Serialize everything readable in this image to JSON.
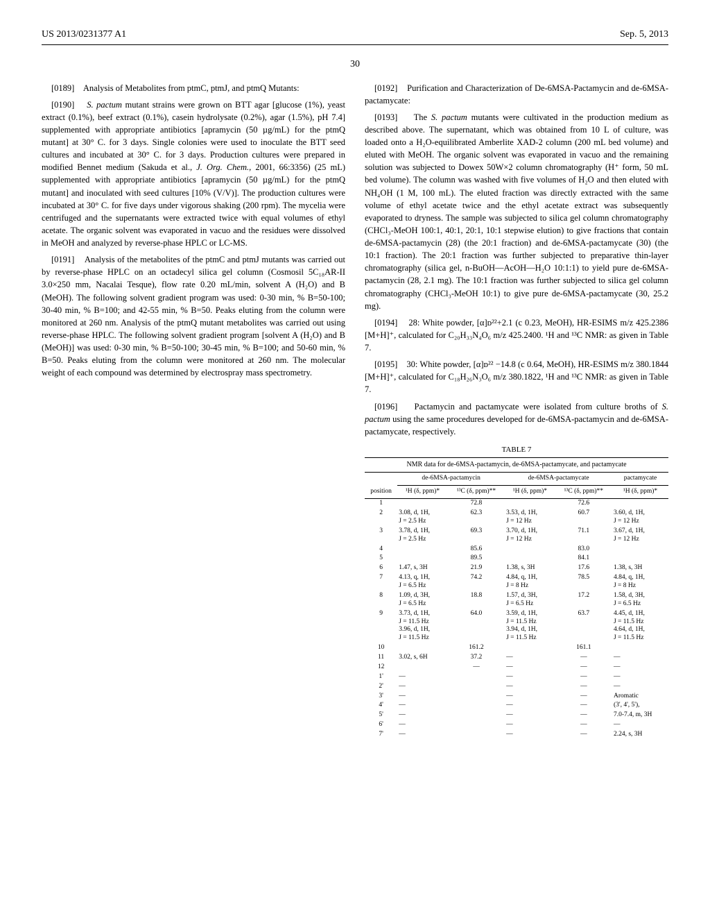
{
  "header": {
    "doc_number": "US 2013/0231377 A1",
    "date": "Sep. 5, 2013",
    "page": "30"
  },
  "left": {
    "p0189_num": "[0189]",
    "p0189_text": "Analysis of Metabolites from ptmC, ptmJ, and ptmQ Mutants:",
    "p0190_num": "[0190]",
    "p0190_text_a": "S. pactum",
    "p0190_text_b": "mutant strains were grown on BTT agar [glucose (1%), yeast extract (0.1%), beef extract (0.1%), casein hydrolysate (0.2%), agar (1.5%), pH 7.4] supplemented with appropriate antibiotics [apramycin (50 µg/mL) for the ptmQ mutant] at 30° C. for 3 days. Single colonies were used to inoculate the BTT seed cultures and incubated at 30° C. for 3 days. Production cultures were prepared in modified Bennet medium (Sakuda et al., ",
    "p0190_text_c": "J. Org. Chem.,",
    "p0190_text_d": " 2001, 66:3356) (25 mL) supplemented with appropriate antibiotics [apramycin (50 µg/mL) for the ptmQ mutant] and inoculated with seed cultures [10% (V/V)]. The production cultures were incubated at 30° C. for five days under vigorous shaking (200 rpm). The mycelia were centrifuged and the supernatants were extracted twice with equal volumes of ethyl acetate. The organic solvent was evaporated in vacuo and the residues were dissolved in MeOH and analyzed by reverse-phase HPLC or LC-MS.",
    "p0191_num": "[0191]",
    "p0191_text": "Analysis of the metabolites of the ptmC and ptmJ mutants was carried out by reverse-phase HPLC on an octadecyl silica gel column (Cosmosil 5C₁₈AR-II 3.0×250 mm, Nacalai Tesque), flow rate 0.20 mL/min, solvent A (H₂O) and B (MeOH). The following solvent gradient program was used: 0-30 min, % B=50-100; 30-40 min, % B=100; and 42-55 min, % B=50. Peaks eluting from the column were monitored at 260 nm. Analysis of the ptmQ mutant metabolites was carried out using reverse-phase HPLC. The following solvent gradient program [solvent A (H₂O) and B (MeOH)] was used: 0-30 min, % B=50-100; 30-45 min, % B=100; and 50-60 min, % B=50. Peaks eluting from the column were monitored at 260 nm. The molecular weight of each compound was determined by electrospray mass spectrometry."
  },
  "right": {
    "p0192_num": "[0192]",
    "p0192_text": "Purification and Characterization of De-6MSA-Pactamycin and de-6MSA-pactamycate:",
    "p0193_num": "[0193]",
    "p0193_text_a": "The ",
    "p0193_text_b": "S. pactum",
    "p0193_text_c": " mutants were cultivated in the production medium as described above. The supernatant, which was obtained from 10 L of culture, was loaded onto a H₂O-equilibrated Amberlite XAD-2 column (200 mL bed volume) and eluted with MeOH. The organic solvent was evaporated in vacuo and the remaining solution was subjected to Dowex 50W×2 column chromatography (H⁺ form, 50 mL bed volume). The column was washed with five volumes of H₂O and then eluted with NH₄OH (1 M, 100 mL). The eluted fraction was directly extracted with the same volume of ethyl acetate twice and the ethyl acetate extract was subsequently evaporated to dryness. The sample was subjected to silica gel column chromatography (CHCl₃-MeOH 100:1, 40:1, 20:1, 10:1 stepwise elution) to give fractions that contain de-6MSA-pactamycin (28) (the 20:1 fraction) and de-6MSA-pactamycate (30) (the 10:1 fraction). The 20:1 fraction was further subjected to preparative thin-layer chromatography (silica gel, n-BuOH—AcOH—H₂O 10:1:1) to yield pure de-6MSA-pactamycin (28, 2.1 mg). The 10:1 fraction was further subjected to silica gel column chromatography (CHCl₃-MeOH 10:1) to give pure de-6MSA-pactamycate (30, 25.2 mg).",
    "p0194_num": "[0194]",
    "p0194_text": "28: White powder, [α]ᴅ²²+2.1 (c 0.23, MeOH), HR-ESIMS m/z 425.2386 [M+H]⁺, calculated for C₂₀H₃₃N₄O₆ m/z 425.2400. ¹H and ¹³C NMR: as given in Table 7.",
    "p0195_num": "[0195]",
    "p0195_text": "30: White powder, [α]ᴅ²² −14.8 (c 0.64, MeOH), HR-ESIMS m/z 380.1844 [M+H]⁺, calculated for C₁₈H₂₆N₃O₆ m/z 380.1822, ¹H and ¹³C NMR: as given in Table 7.",
    "p0196_num": "[0196]",
    "p0196_text_a": "Pactamycin and pactamycate were isolated from culture broths of ",
    "p0196_text_b": "S. pactum",
    "p0196_text_c": " using the same procedures developed for de-6MSA-pactamycin and de-6MSA-pactamycate, respectively."
  },
  "table": {
    "label": "TABLE 7",
    "caption": "NMR data for de-6MSA-pactamycin, de-6MSA-pactamycate, and pactamycate",
    "group_headers": [
      "de-6MSA-pactamycin",
      "de-6MSA-pactamycate",
      "pactamycate"
    ],
    "sub_headers": {
      "position": "position",
      "h1": "¹H (δ, ppm)*",
      "c13": "¹³C (δ, ppm)**"
    },
    "rows": [
      {
        "pos": "1",
        "h1a": "",
        "c1a": "72.8",
        "h1b": "",
        "c1b": "72.6",
        "h1c": ""
      },
      {
        "pos": "2",
        "h1a": "3.08, d, 1H,\nJ = 2.5 Hz",
        "c1a": "62.3",
        "h1b": "3.53, d, 1H,\nJ = 12 Hz",
        "c1b": "60.7",
        "h1c": "3.60, d, 1H,\nJ = 12 Hz"
      },
      {
        "pos": "3",
        "h1a": "3.78, d, 1H,\nJ = 2.5 Hz",
        "c1a": "69.3",
        "h1b": "3.70, d, 1H,\nJ = 12 Hz",
        "c1b": "71.1",
        "h1c": "3.67, d, 1H,\nJ = 12 Hz"
      },
      {
        "pos": "4",
        "h1a": "",
        "c1a": "85.6",
        "h1b": "",
        "c1b": "83.0",
        "h1c": ""
      },
      {
        "pos": "5",
        "h1a": "",
        "c1a": "89.5",
        "h1b": "",
        "c1b": "84.1",
        "h1c": ""
      },
      {
        "pos": "6",
        "h1a": "1.47, s, 3H",
        "c1a": "21.9",
        "h1b": "1.38, s, 3H",
        "c1b": "17.6",
        "h1c": "1.38, s, 3H"
      },
      {
        "pos": "7",
        "h1a": "4.13, q, 1H,\nJ = 6.5 Hz",
        "c1a": "74.2",
        "h1b": "4.84, q, 1H,\nJ = 8 Hz",
        "c1b": "78.5",
        "h1c": "4.84, q, 1H,\nJ = 8 Hz"
      },
      {
        "pos": "8",
        "h1a": "1.09, d, 3H,\nJ = 6.5 Hz",
        "c1a": "18.8",
        "h1b": "1.57, d, 3H,\nJ = 6.5 Hz",
        "c1b": "17.2",
        "h1c": "1.58, d, 3H,\nJ = 6.5 Hz"
      },
      {
        "pos": "9",
        "h1a": "3.73, d, 1H,\nJ = 11.5 Hz\n3.96, d, 1H,\nJ = 11.5 Hz",
        "c1a": "64.0",
        "h1b": "3.59, d, 1H,\nJ = 11.5 Hz\n3.94, d, 1H,\nJ = 11.5 Hz",
        "c1b": "63.7",
        "h1c": "4.45, d, 1H,\nJ = 11.5 Hz\n4.64, d, 1H,\nJ = 11.5 Hz"
      },
      {
        "pos": "10",
        "h1a": "",
        "c1a": "161.2",
        "h1b": "",
        "c1b": "161.1",
        "h1c": ""
      },
      {
        "pos": "11",
        "h1a": "3.02, s, 6H",
        "c1a": "37.2",
        "h1b": "—",
        "c1b": "—",
        "h1c": "—"
      },
      {
        "pos": "12",
        "h1a": "",
        "c1a": "—",
        "h1b": "—",
        "c1b": "—",
        "h1c": "—"
      },
      {
        "pos": "1'",
        "h1a": "—",
        "c1a": "",
        "h1b": "—",
        "c1b": "—",
        "h1c": "—"
      },
      {
        "pos": "2'",
        "h1a": "—",
        "c1a": "",
        "h1b": "—",
        "c1b": "—",
        "h1c": "—"
      },
      {
        "pos": "3'",
        "h1a": "—",
        "c1a": "",
        "h1b": "—",
        "c1b": "—",
        "h1c": "Aromatic"
      },
      {
        "pos": "4'",
        "h1a": "—",
        "c1a": "",
        "h1b": "—",
        "c1b": "—",
        "h1c": "(3', 4', 5'),"
      },
      {
        "pos": "5'",
        "h1a": "—",
        "c1a": "",
        "h1b": "—",
        "c1b": "—",
        "h1c": "7.0-7.4, m, 3H"
      },
      {
        "pos": "6'",
        "h1a": "—",
        "c1a": "",
        "h1b": "—",
        "c1b": "—",
        "h1c": "—"
      },
      {
        "pos": "7'",
        "h1a": "—",
        "c1a": "",
        "h1b": "—",
        "c1b": "—",
        "h1c": "2.24, s, 3H"
      }
    ]
  }
}
